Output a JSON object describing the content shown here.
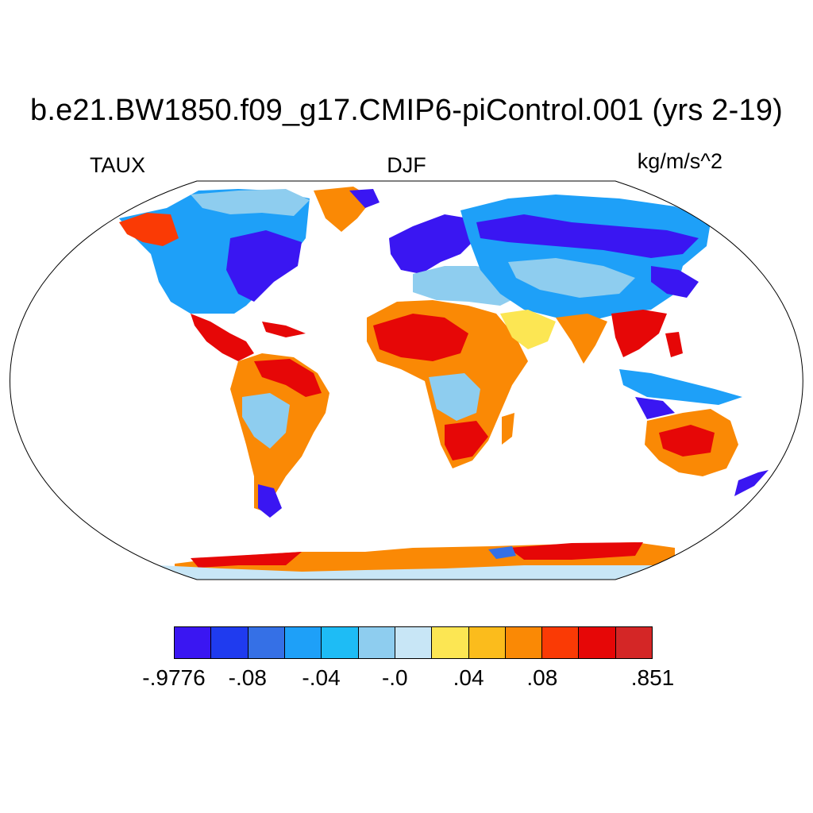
{
  "title": "b.e21.BW1850.f09_g17.CMIP6-piControl.001 (yrs 2-19)",
  "left_label": "TAUX",
  "center_label": "DJF",
  "right_label": "kg/m/s^2",
  "colorbar": {
    "colors": [
      "#3a16f2",
      "#1f3bef",
      "#3570e6",
      "#1ea0f8",
      "#1ebcf5",
      "#8ecdef",
      "#c8e6f6",
      "#fce653",
      "#fbbc1c",
      "#fa8905",
      "#fa3a05",
      "#e60707",
      "#d42626"
    ],
    "labels": [
      {
        "text": ".9776-",
        "display": "-.9776",
        "boundary": 0
      },
      {
        "text": "-.08",
        "boundary": 2
      },
      {
        "text": "-.04",
        "boundary": 4
      },
      {
        "text": "-.0",
        "boundary": 6
      },
      {
        "text": ".04",
        "boundary": 8
      },
      {
        "text": ".08",
        "boundary": 10
      },
      {
        "text": ".851",
        "boundary": 13
      }
    ]
  },
  "map": {
    "projection": "Robinson",
    "variable": "TAUX",
    "season": "DJF",
    "ocean_color": "#ffffff"
  }
}
